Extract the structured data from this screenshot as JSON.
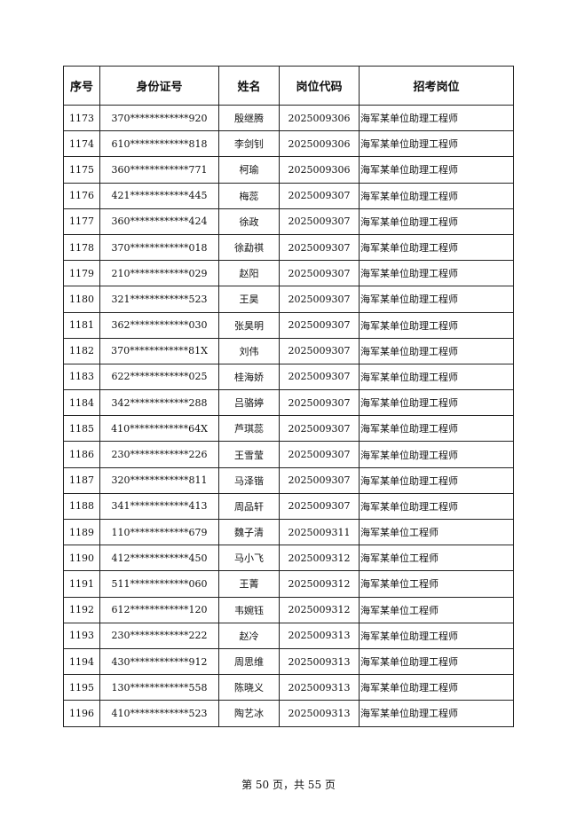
{
  "table": {
    "headers": [
      "序号",
      "身份证号",
      "姓名",
      "岗位代码",
      "招考岗位"
    ],
    "rows": [
      [
        "1173",
        "370************920",
        "殷继腾",
        "2025009306",
        "海军某单位助理工程师"
      ],
      [
        "1174",
        "610************818",
        "李剑钊",
        "2025009306",
        "海军某单位助理工程师"
      ],
      [
        "1175",
        "360************771",
        "柯瑜",
        "2025009306",
        "海军某单位助理工程师"
      ],
      [
        "1176",
        "421************445",
        "梅蕊",
        "2025009307",
        "海军某单位助理工程师"
      ],
      [
        "1177",
        "360************424",
        "徐政",
        "2025009307",
        "海军某单位助理工程师"
      ],
      [
        "1178",
        "370************018",
        "徐勐祺",
        "2025009307",
        "海军某单位助理工程师"
      ],
      [
        "1179",
        "210************029",
        "赵阳",
        "2025009307",
        "海军某单位助理工程师"
      ],
      [
        "1180",
        "321************523",
        "王昊",
        "2025009307",
        "海军某单位助理工程师"
      ],
      [
        "1181",
        "362************030",
        "张昊明",
        "2025009307",
        "海军某单位助理工程师"
      ],
      [
        "1182",
        "370************81X",
        "刘伟",
        "2025009307",
        "海军某单位助理工程师"
      ],
      [
        "1183",
        "622************025",
        "桂海娇",
        "2025009307",
        "海军某单位助理工程师"
      ],
      [
        "1184",
        "342************288",
        "吕骆婷",
        "2025009307",
        "海军某单位助理工程师"
      ],
      [
        "1185",
        "410************64X",
        "芦琪蕊",
        "2025009307",
        "海军某单位助理工程师"
      ],
      [
        "1186",
        "230************226",
        "王雪莹",
        "2025009307",
        "海军某单位助理工程师"
      ],
      [
        "1187",
        "320************811",
        "马泽锴",
        "2025009307",
        "海军某单位助理工程师"
      ],
      [
        "1188",
        "341************413",
        "周品轩",
        "2025009307",
        "海军某单位助理工程师"
      ],
      [
        "1189",
        "110************679",
        "魏子清",
        "2025009311",
        "海军某单位工程师"
      ],
      [
        "1190",
        "412************450",
        "马小飞",
        "2025009312",
        "海军某单位工程师"
      ],
      [
        "1191",
        "511************060",
        "王菁",
        "2025009312",
        "海军某单位工程师"
      ],
      [
        "1192",
        "612************120",
        "韦婉钰",
        "2025009312",
        "海军某单位工程师"
      ],
      [
        "1193",
        "230************222",
        "赵冷",
        "2025009313",
        "海军某单位助理工程师"
      ],
      [
        "1194",
        "430************912",
        "周思维",
        "2025009313",
        "海军某单位助理工程师"
      ],
      [
        "1195",
        "130************558",
        "陈晓义",
        "2025009313",
        "海军某单位助理工程师"
      ],
      [
        "1196",
        "410************523",
        "陶艺冰",
        "2025009313",
        "海军某单位助理工程师"
      ]
    ]
  },
  "footer": {
    "page_text": "第 50 页，共 55 页"
  }
}
